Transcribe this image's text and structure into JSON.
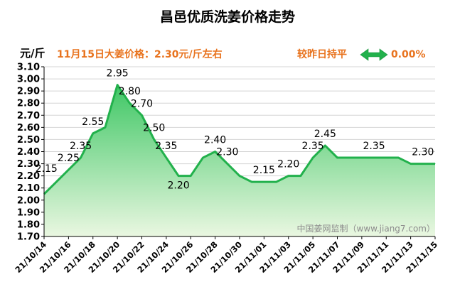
{
  "chart_data": {
    "type": "area",
    "title": "昌邑优质洗姜价格走势",
    "ylabel": "元/斤",
    "annotation_left": "11月15日大姜价格：2.30元/斤左右",
    "annotation_right": "较昨日持平",
    "annotation_change": "0.00%",
    "watermark": "中国姜网监制（www.jiang7.com）",
    "ylim": [
      1.7,
      3.1
    ],
    "yticks": [
      "1.70",
      "1.80",
      "1.90",
      "2.00",
      "2.10",
      "2.20",
      "2.30",
      "2.40",
      "2.50",
      "2.60",
      "2.70",
      "2.80",
      "2.90",
      "3.00",
      "3.10"
    ],
    "x_ticks": [
      "21/10/14",
      "21/10/16",
      "21/10/18",
      "21/10/20",
      "21/10/22",
      "21/10/24",
      "21/10/26",
      "21/10/28",
      "21/10/30",
      "21/11/01",
      "21/11/03",
      "21/11/05",
      "21/11/07",
      "21/11/09",
      "21/11/11",
      "21/11/13",
      "21/11/15"
    ],
    "values": [
      2.05,
      2.15,
      2.25,
      2.35,
      2.55,
      2.6,
      2.95,
      2.8,
      2.7,
      2.5,
      2.35,
      2.2,
      2.2,
      2.35,
      2.4,
      2.3,
      2.2,
      2.15,
      2.15,
      2.15,
      2.2,
      2.2,
      2.35,
      2.45,
      2.35,
      2.35,
      2.35,
      2.35,
      2.35,
      2.35,
      2.3,
      2.3,
      2.3
    ],
    "data_labels": [
      {
        "index": 1,
        "text": "2.15"
      },
      {
        "index": 2,
        "text": "2.25"
      },
      {
        "index": 3,
        "text": "2.35"
      },
      {
        "index": 4,
        "text": "2.55"
      },
      {
        "index": 6,
        "text": "2.95"
      },
      {
        "index": 7,
        "text": "2.80"
      },
      {
        "index": 8,
        "text": "2.70"
      },
      {
        "index": 9,
        "text": "2.50"
      },
      {
        "index": 10,
        "text": "2.35"
      },
      {
        "index": 11,
        "text": "2.20"
      },
      {
        "index": 14,
        "text": "2.40"
      },
      {
        "index": 15,
        "text": "2.30"
      },
      {
        "index": 18,
        "text": "2.15"
      },
      {
        "index": 20,
        "text": "2.20"
      },
      {
        "index": 22,
        "text": "2.35"
      },
      {
        "index": 23,
        "text": "2.45"
      },
      {
        "index": 27,
        "text": "2.35"
      },
      {
        "index": 31,
        "text": "2.30"
      }
    ],
    "colors": {
      "line": "#22b14c",
      "fill_top": "#3fc765",
      "fill_bottom": "#eaf7e1",
      "annotation": "#e8731e",
      "title": "#000000"
    },
    "grid": true
  }
}
